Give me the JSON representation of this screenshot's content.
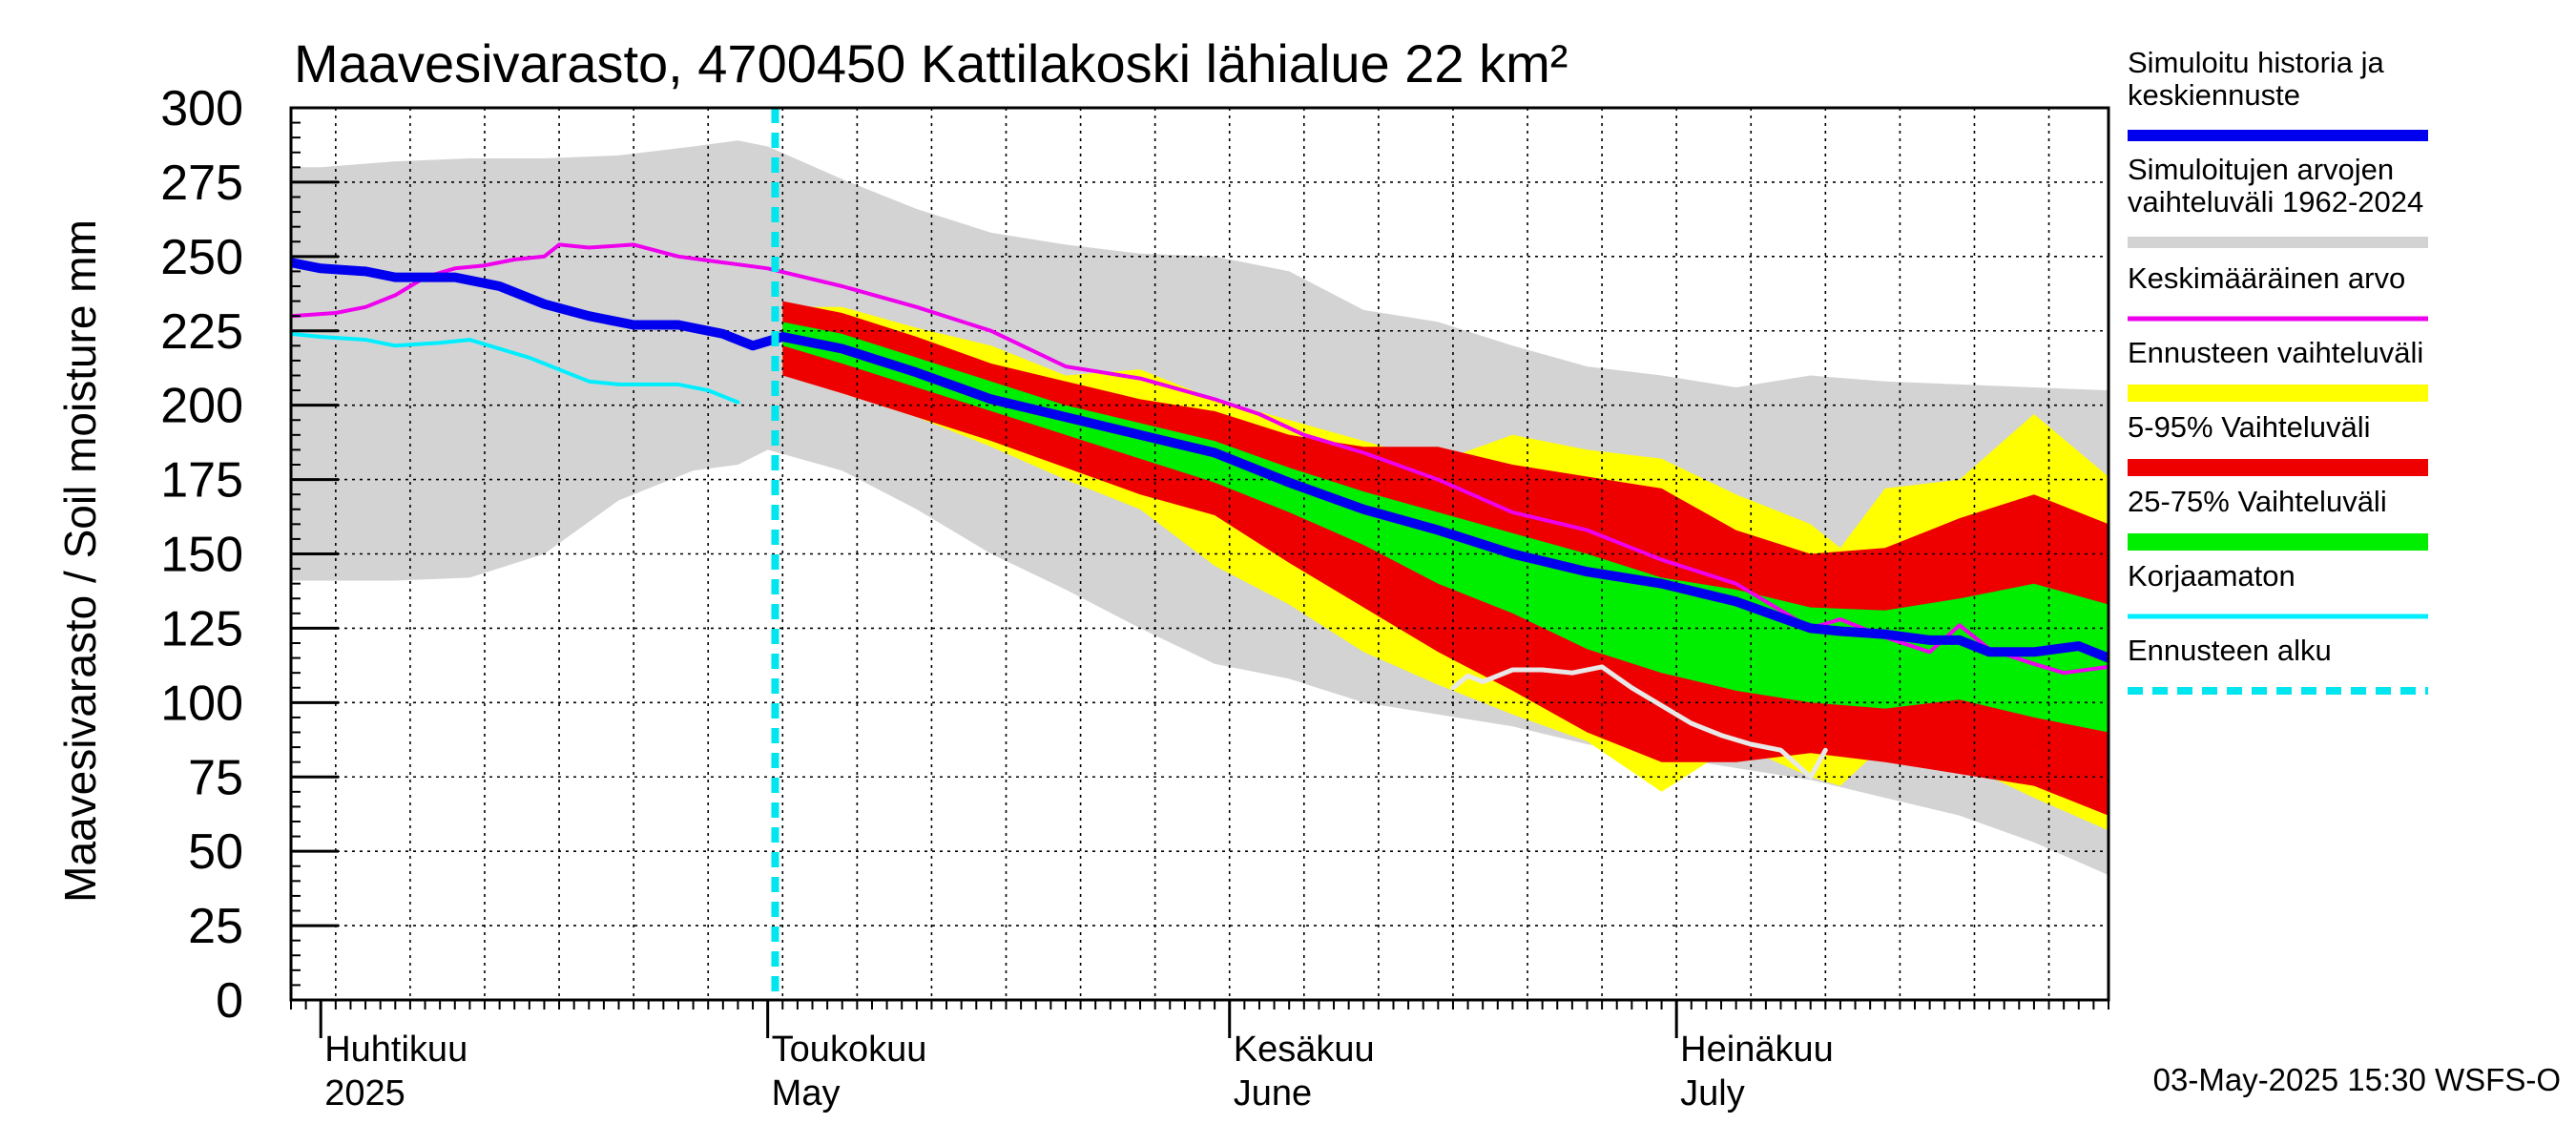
{
  "title": "Maavesivarasto, 4700450 Kattilakoski lähialue 22 km²",
  "footer": "03-May-2025 15:30 WSFS-O",
  "colors": {
    "history": "#0000ee",
    "range_hist": "#d3d3d3",
    "mean": "#ee00ee",
    "forecast_range": "#ffff00",
    "p5_95": "#ee0000",
    "p25_75": "#00ee00",
    "uncorrected": "#00eeff",
    "forecast_start": "#00e5ee",
    "white_line": "#e8e8e8"
  },
  "legend": [
    {
      "label": "Simuloitu historia ja",
      "label2": "keskiennuste",
      "key": "history"
    },
    {
      "label": "Simuloitujen arvojen",
      "label2": "vaihteluväli 1962-2024",
      "key": "range_hist"
    },
    {
      "label": "Keskimääräinen arvo",
      "key": "mean"
    },
    {
      "label": "Ennusteen vaihteluväli",
      "key": "forecast_range"
    },
    {
      "label": "5-95% Vaihteluväli",
      "key": "p5_95"
    },
    {
      "label": "25-75% Vaihteluväli",
      "key": "p25_75"
    },
    {
      "label": "Korjaamaton",
      "key": "uncorrected"
    },
    {
      "label": "Ennusteen alku",
      "key": "forecast_start"
    }
  ],
  "chart_data": {
    "type": "area",
    "title": "Maavesivarasto, 4700450 Kattilakoski lähialue 22 km²",
    "ylabel": "Maavesivarasto / Soil moisture   mm",
    "ylim": [
      0,
      300
    ],
    "yticks": [
      0,
      25,
      50,
      75,
      100,
      125,
      150,
      175,
      200,
      225,
      250,
      275,
      300
    ],
    "xlim_days": [
      -2,
      120
    ],
    "x_unit": "days since 1 Apr 2025",
    "month_labels": [
      {
        "day": 0,
        "fi": "Huhtikuu",
        "en": "2025"
      },
      {
        "day": 30,
        "fi": "Toukokuu",
        "en": "May"
      },
      {
        "day": 61,
        "fi": "Kesäkuu",
        "en": "June"
      },
      {
        "day": 91,
        "fi": "Heinäkuu",
        "en": "July"
      }
    ],
    "forecast_start_day": 30.5,
    "series": [
      {
        "name": "Simuloitujen arvojen vaihteluväli 1962-2024",
        "kind": "band",
        "color_key": "range_hist",
        "x": [
          -2,
          0,
          5,
          10,
          15,
          20,
          25,
          28,
          30,
          35,
          40,
          45,
          50,
          55,
          60,
          65,
          70,
          75,
          80,
          85,
          90,
          95,
          100,
          105,
          110,
          115,
          120
        ],
        "upper": [
          280,
          280,
          282,
          283,
          283,
          284,
          287,
          289,
          287,
          276,
          266,
          258,
          254,
          251,
          250,
          245,
          232,
          228,
          220,
          213,
          210,
          206,
          210,
          208,
          207,
          206,
          205
        ],
        "lower": [
          141,
          141,
          141,
          142,
          150,
          168,
          178,
          180,
          185,
          178,
          165,
          150,
          138,
          125,
          113,
          108,
          100,
          96,
          92,
          86,
          82,
          78,
          74,
          68,
          62,
          53,
          42
        ]
      },
      {
        "name": "Ennusteen vaihteluväli",
        "kind": "band",
        "color_key": "forecast_range",
        "x": [
          31,
          35,
          40,
          45,
          50,
          55,
          60,
          65,
          70,
          75,
          80,
          85,
          90,
          95,
          100,
          102,
          105,
          110,
          115,
          120
        ],
        "upper": [
          233,
          233,
          226,
          220,
          210,
          212,
          202,
          195,
          188,
          181,
          190,
          185,
          182,
          170,
          160,
          152,
          172,
          175,
          197,
          176
        ],
        "lower": [
          212,
          204,
          196,
          186,
          175,
          165,
          146,
          133,
          117,
          106,
          96,
          87,
          70,
          86,
          75,
          72,
          86,
          80,
          68,
          57
        ]
      },
      {
        "name": "5-95% Vaihteluväli",
        "kind": "band",
        "color_key": "p5_95",
        "x": [
          31,
          35,
          40,
          45,
          50,
          55,
          60,
          65,
          70,
          75,
          80,
          85,
          90,
          95,
          100,
          105,
          110,
          115,
          120
        ],
        "upper": [
          235,
          231,
          223,
          214,
          208,
          202,
          198,
          190,
          186,
          186,
          180,
          176,
          172,
          158,
          150,
          152,
          162,
          170,
          160
        ],
        "lower": [
          210,
          204,
          196,
          188,
          179,
          170,
          163,
          147,
          132,
          117,
          104,
          90,
          80,
          80,
          83,
          80,
          76,
          72,
          62
        ]
      },
      {
        "name": "25-75% Vaihteluväli",
        "kind": "band",
        "color_key": "p25_75",
        "x": [
          31,
          35,
          40,
          45,
          50,
          55,
          60,
          65,
          70,
          75,
          80,
          85,
          90,
          95,
          100,
          105,
          110,
          115,
          120
        ],
        "upper": [
          228,
          224,
          216,
          208,
          200,
          194,
          188,
          179,
          171,
          164,
          157,
          150,
          142,
          138,
          132,
          131,
          135,
          140,
          133
        ],
        "lower": [
          220,
          214,
          206,
          198,
          190,
          182,
          174,
          164,
          153,
          140,
          130,
          118,
          110,
          104,
          100,
          98,
          101,
          95,
          90
        ]
      },
      {
        "name": "Simuloitu historia ja keskiennuste",
        "kind": "line",
        "color_key": "history",
        "width": 10,
        "x": [
          -2,
          0,
          3,
          5,
          9,
          12,
          15,
          18,
          21,
          24,
          27,
          28,
          29,
          31,
          35,
          40,
          45,
          50,
          55,
          60,
          65,
          70,
          75,
          80,
          85,
          90,
          95,
          100,
          102,
          105,
          108,
          110,
          112,
          115,
          118,
          120
        ],
        "y": [
          248,
          246,
          245,
          243,
          243,
          240,
          234,
          230,
          227,
          227,
          224,
          222,
          220,
          223,
          219,
          211,
          202,
          196,
          190,
          184,
          174,
          165,
          158,
          150,
          144,
          140,
          134,
          125,
          124,
          123,
          121,
          121,
          117,
          117,
          119,
          115
        ]
      },
      {
        "name": "Keskimääräinen arvo",
        "kind": "line",
        "color_key": "mean",
        "width": 4,
        "x": [
          -2,
          1,
          3,
          5,
          7,
          9,
          11,
          13,
          15,
          16,
          18,
          21,
          24,
          27,
          30,
          35,
          40,
          45,
          50,
          55,
          60,
          63,
          66,
          70,
          75,
          80,
          85,
          90,
          95,
          100,
          102,
          105,
          108,
          110,
          112,
          115,
          117,
          120
        ],
        "y": [
          230,
          231,
          233,
          237,
          243,
          246,
          247,
          249,
          250,
          254,
          253,
          254,
          250,
          248,
          246,
          240,
          233,
          225,
          213,
          209,
          202,
          197,
          190,
          184,
          175,
          164,
          158,
          148,
          140,
          125,
          128,
          122,
          117,
          126,
          118,
          113,
          110,
          112
        ]
      },
      {
        "name": "Korjaamaton",
        "kind": "line",
        "color_key": "uncorrected",
        "width": 4,
        "x": [
          -2,
          0,
          3,
          5,
          8,
          10,
          12,
          14,
          16,
          18,
          20,
          22,
          24,
          26,
          28
        ],
        "y": [
          224,
          223,
          222,
          220,
          221,
          222,
          219,
          216,
          212,
          208,
          207,
          207,
          207,
          205,
          201
        ]
      },
      {
        "name": "white trace",
        "kind": "line",
        "color_key": "white_line",
        "width": 5,
        "x": [
          76,
          77,
          78,
          80,
          82,
          84,
          86,
          88,
          90,
          92,
          94,
          96,
          98,
          100,
          101
        ],
        "y": [
          105,
          109,
          107,
          111,
          111,
          110,
          112,
          105,
          99,
          93,
          89,
          86,
          84,
          75,
          84
        ]
      }
    ]
  }
}
